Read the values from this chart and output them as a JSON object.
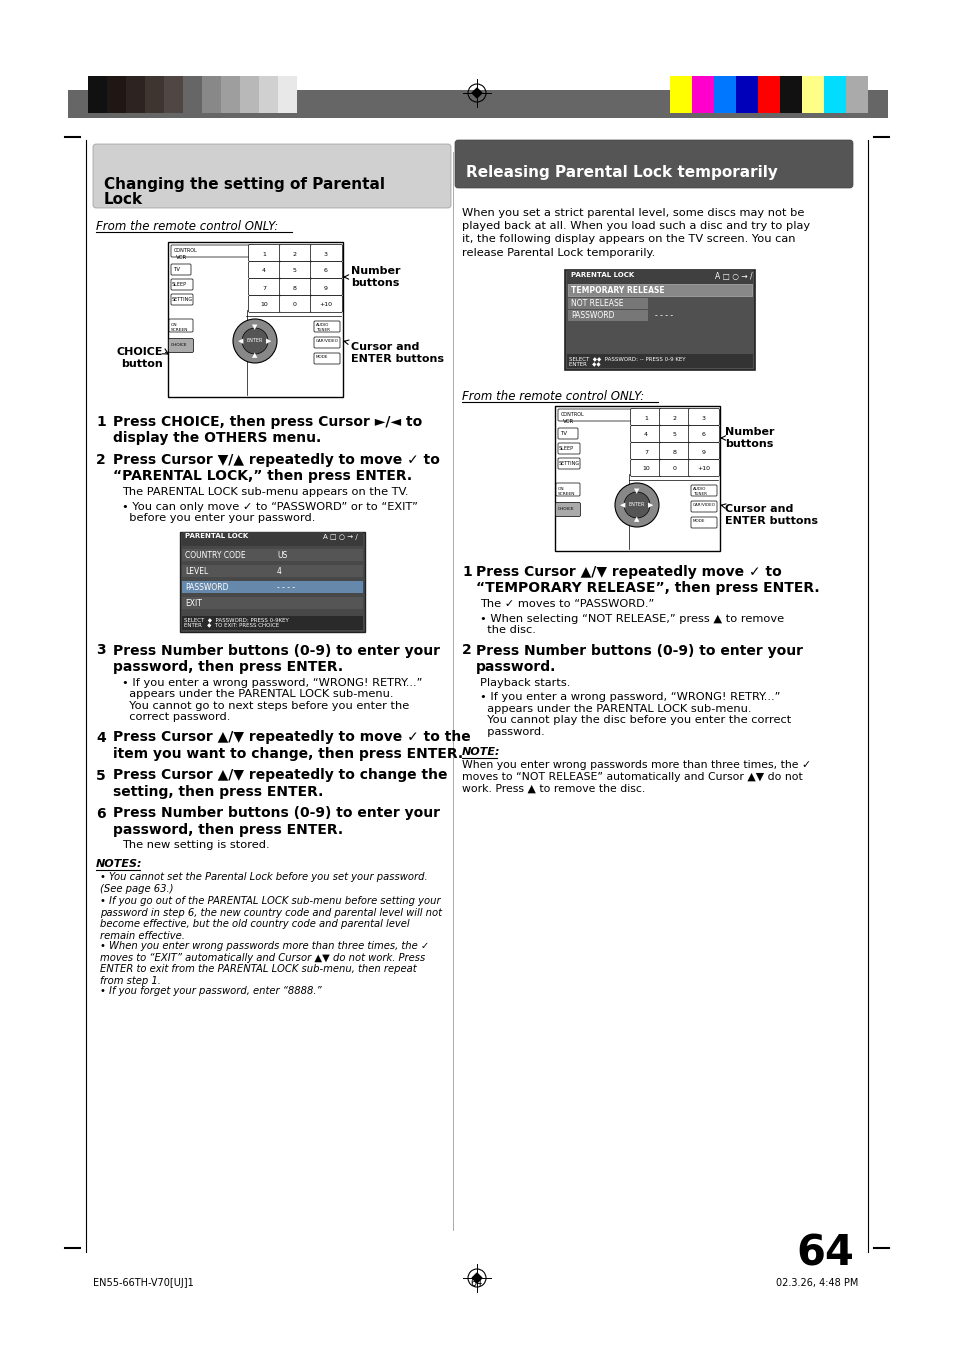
{
  "page_bg": "#ffffff",
  "top_bar_color": "#666666",
  "page_number": "64",
  "footer_left": "EN55-66TH-V70[UJ]1",
  "footer_center": "64",
  "footer_right": "02.3.26, 4:48 PM",
  "left_title": "Changing the setting of Parental\nLock",
  "right_title": "Releasing Parental Lock temporarily",
  "bar_colors_left": [
    "#111111",
    "#1e1714",
    "#2d2422",
    "#3d3530",
    "#504745",
    "#666666",
    "#888888",
    "#9e9e9e",
    "#b8b8b8",
    "#d0d0d0",
    "#e8e8e8"
  ],
  "bar_colors_right": [
    "#ffff00",
    "#ff00cc",
    "#0077ff",
    "#0000bb",
    "#ff0000",
    "#111111",
    "#ffff88",
    "#00ddff",
    "#aaaaaa"
  ],
  "intro_right": "When you set a strict parental level, some discs may not be\nplayed back at all. When you load such a disc and try to play\nit, the following display appears on the TV screen. You can\nrelease Parental Lock temporarily.",
  "from_remote": "From the remote control ONLY:",
  "left_steps": [
    {
      "n": "1",
      "text": "Press CHOICE, then press Cursor ►/◄ to\ndisplay the OTHERS menu."
    },
    {
      "n": "2",
      "text": "Press Cursor ▼/▲ repeatedly to move ✓ to\n“PARENTAL LOCK,” then press ENTER."
    },
    {
      "n": "3",
      "text": "Press Number buttons (0-9) to enter your\npassword, then press ENTER."
    },
    {
      "n": "4",
      "text": "Press Cursor ▲/▼ repeatedly to move ✓ to the\nitem you want to change, then press ENTER."
    },
    {
      "n": "5",
      "text": "Press Cursor ▲/▼ repeatedly to change the\nsetting, then press ENTER."
    },
    {
      "n": "6",
      "text": "Press Number buttons (0-9) to enter your\npassword, then press ENTER."
    }
  ],
  "step2_note1": "The PARENTAL LOCK sub-menu appears on the TV.",
  "step2_note2": "• You can only move ✓ to “PASSWORD” or to “EXIT”\n  before you enter your password.",
  "step3_note": "• If you enter a wrong password, “WRONG! RETRY...”\n  appears under the PARENTAL LOCK sub-menu.\n  You cannot go to next steps before you enter the\n  correct password.",
  "step6_note": "The new setting is stored.",
  "notes_title": "NOTES:",
  "notes": [
    "You cannot set the Parental Lock before you set your password.\n(See page 63.)",
    "If you go out of the PARENTAL LOCK sub-menu before setting your\npassword in step 6, the new country code and parental level will not\nbecome effective, but the old country code and parental level\nremain effective.",
    "When you enter wrong passwords more than three times, the ✓\nmoves to “EXIT” automatically and Cursor ▲▼ do not work. Press\nENTER to exit from the PARENTAL LOCK sub-menu, then repeat\nfrom step 1.",
    "If you forget your password, enter “8888.”"
  ],
  "right_steps": [
    {
      "n": "1",
      "text": "Press Cursor ▲/▼ repeatedly move ✓ to\n“TEMPORARY RELEASE”, then press ENTER."
    },
    {
      "n": "2",
      "text": "Press Number buttons (0-9) to enter your\npassword."
    }
  ],
  "step1r_note1": "The ✓ moves to “PASSWORD.”",
  "step1r_note2": "• When selecting “NOT RELEASE,” press ▲ to remove\n  the disc.",
  "step2r_note1": "Playback starts.",
  "step2r_note2": "• If you enter a wrong password, “WRONG! RETRY...”\n  appears under the PARENTAL LOCK sub-menu.\n  You cannot play the disc before you enter the correct\n  password.",
  "note_title": "NOTE:",
  "note_text": "When you enter wrong passwords more than three times, the ✓\nmoves to “NOT RELEASE” automatically and Cursor ▲▼ do not\nwork. Press ▲ to remove the disc."
}
